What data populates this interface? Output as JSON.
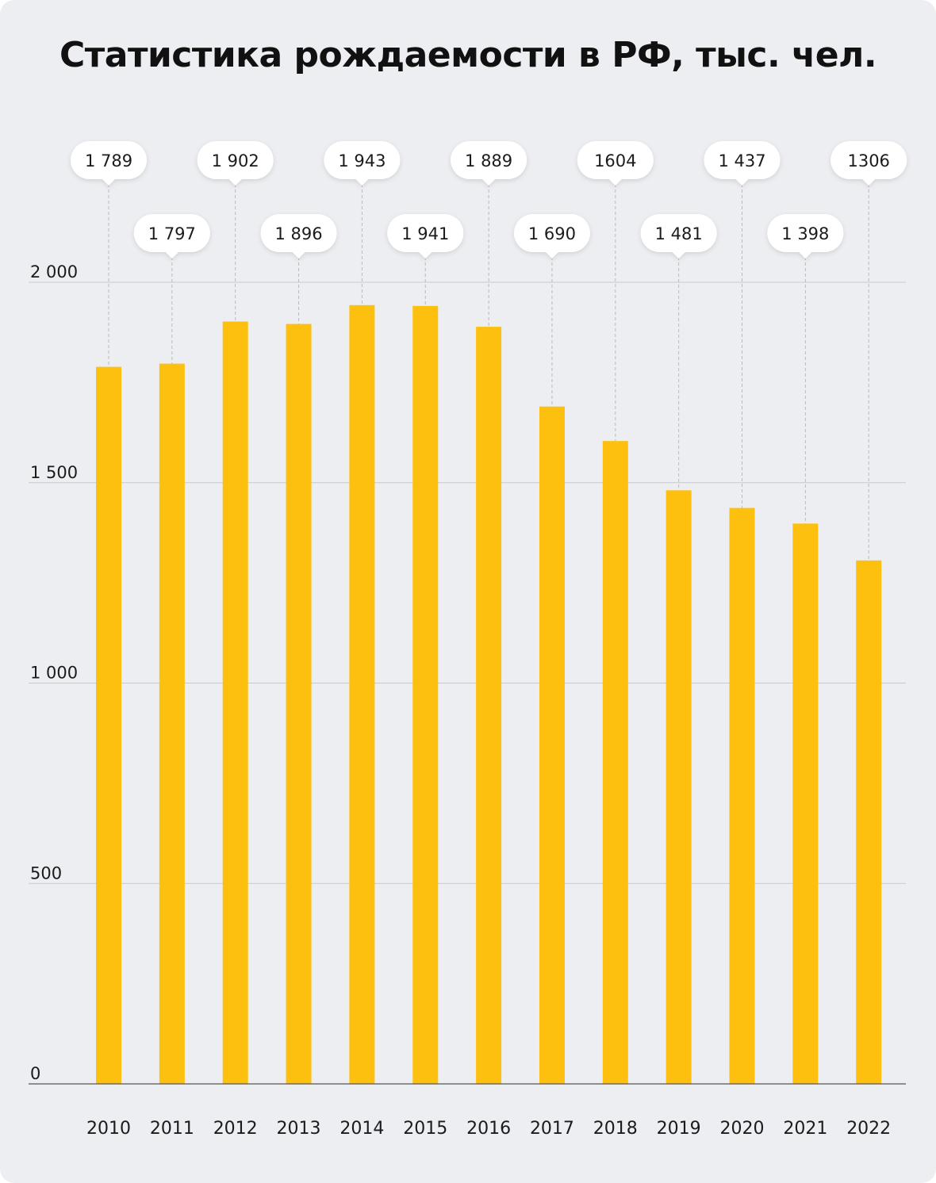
{
  "chart_data": {
    "type": "bar",
    "title": "Статистика рождаемости в РФ, тыс. чел.",
    "xlabel": "",
    "ylabel": "",
    "categories": [
      "2010",
      "2011",
      "2012",
      "2013",
      "2014",
      "2015",
      "2016",
      "2017",
      "2018",
      "2019",
      "2020",
      "2021",
      "2022"
    ],
    "values": [
      1789,
      1797,
      1902,
      1896,
      1943,
      1941,
      1889,
      1690,
      1604,
      1481,
      1437,
      1398,
      1306
    ],
    "data_labels": [
      "1 789",
      "1 797",
      "1 902",
      "1 896",
      "1 943",
      "1 941",
      "1 889",
      "1 690",
      "1604",
      "1 481",
      "1 437",
      "1 398",
      "1306"
    ],
    "yticks": [
      0,
      500,
      1000,
      1500,
      2000
    ],
    "ytick_labels": [
      "0",
      "500",
      "1 000",
      "1 500",
      "2 000"
    ],
    "ylim": [
      0,
      2000
    ],
    "grid": true,
    "legend": "none",
    "colors": {
      "bar": "#FDC00F",
      "background": "#EDEEF1",
      "bubble": "#FFFFFF",
      "grid": "#C8C9CC",
      "axis": "#555555"
    }
  }
}
